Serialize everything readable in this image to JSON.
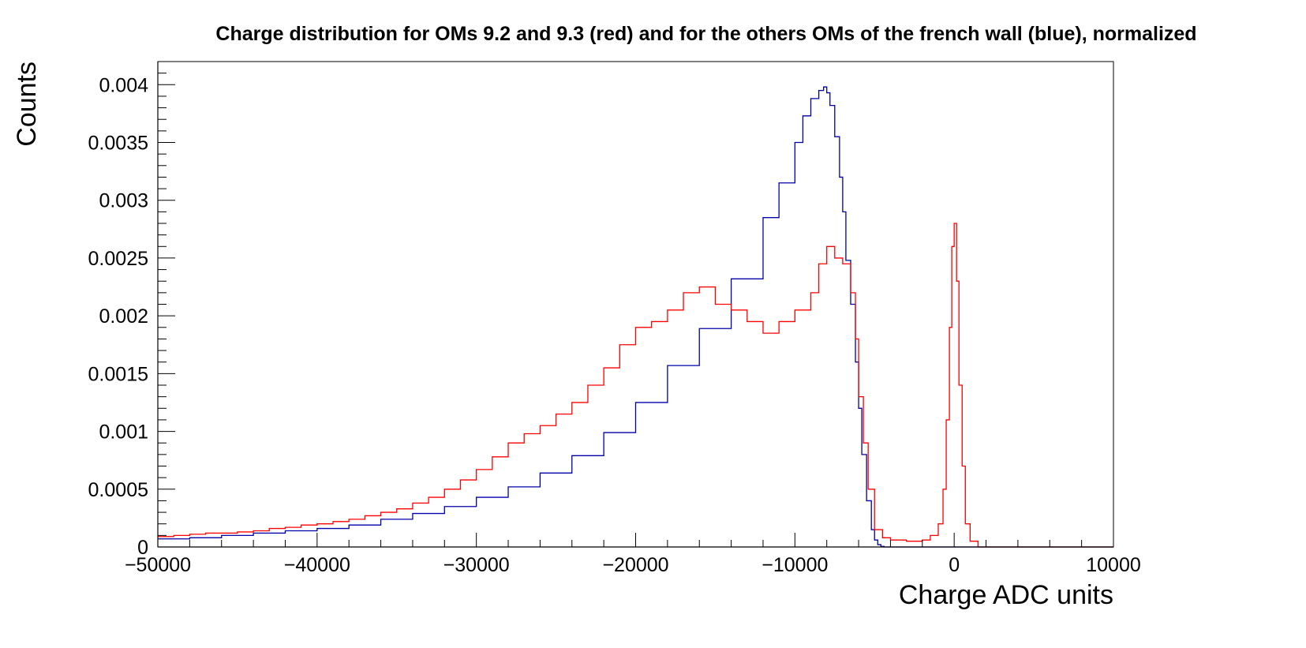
{
  "chart_data": {
    "type": "line",
    "title": "Charge distribution for OMs 9.2 and 9.3 (red)  and for the others OMs of the french wall (blue), normalized",
    "xlabel": "Charge ADC units",
    "ylabel": "Counts",
    "xlim": [
      -50000,
      10000
    ],
    "ylim": [
      0,
      0.0042
    ],
    "xticks": [
      -50000,
      -40000,
      -30000,
      -20000,
      -10000,
      0,
      10000
    ],
    "xtick_labels": [
      "−50000",
      "−40000",
      "−30000",
      "−20000",
      "−10000",
      "0",
      "10000"
    ],
    "yticks": [
      0,
      0.0005,
      0.001,
      0.0015,
      0.002,
      0.0025,
      0.003,
      0.0035,
      0.004
    ],
    "ytick_labels": [
      "0",
      "0.0005",
      "0.001",
      "0.0015",
      "0.002",
      "0.0025",
      "0.003",
      "0.0035",
      "0.004"
    ],
    "grid": false,
    "series": [
      {
        "color": "#0000a8",
        "style": "step",
        "x": [
          -50000,
          -48000,
          -46000,
          -44000,
          -42000,
          -40000,
          -38000,
          -36000,
          -34000,
          -32000,
          -30000,
          -28000,
          -26000,
          -24000,
          -22000,
          -20000,
          -18000,
          -16000,
          -14000,
          -12000,
          -11000,
          -10000,
          -9500,
          -9000,
          -8500,
          -8200,
          -8000,
          -7800,
          -7500,
          -7200,
          -7000,
          -6800,
          -6500,
          -6200,
          -6000,
          -5800,
          -5500,
          -5200,
          -5000,
          -4800,
          -4600,
          -4400,
          -4200,
          10000
        ],
        "y": [
          7e-05,
          8e-05,
          0.0001,
          0.00012,
          0.00014,
          0.00016,
          0.00019,
          0.00024,
          0.00029,
          0.00035,
          0.00043,
          0.00052,
          0.00064,
          0.00079,
          0.00099,
          0.00125,
          0.00157,
          0.00189,
          0.00232,
          0.00285,
          0.00315,
          0.0035,
          0.00373,
          0.00388,
          0.00395,
          0.00398,
          0.00393,
          0.00382,
          0.00355,
          0.0032,
          0.0029,
          0.00248,
          0.0021,
          0.0016,
          0.0012,
          0.0008,
          0.0004,
          0.00015,
          6e-05,
          2e-05,
          5e-06,
          0.0,
          0.0,
          0.0
        ]
      },
      {
        "color": "#ff0000",
        "style": "step",
        "x": [
          -50000,
          -49000,
          -48000,
          -47000,
          -46000,
          -45000,
          -44000,
          -43000,
          -42000,
          -41000,
          -40000,
          -39000,
          -38000,
          -37000,
          -36000,
          -35000,
          -34000,
          -33000,
          -32000,
          -31000,
          -30000,
          -29000,
          -28000,
          -27000,
          -26000,
          -25000,
          -24000,
          -23000,
          -22000,
          -21000,
          -20000,
          -19000,
          -18000,
          -17000,
          -16000,
          -15000,
          -14000,
          -13000,
          -12000,
          -11000,
          -10000,
          -9000,
          -8500,
          -8000,
          -7500,
          -7000,
          -6500,
          -6200,
          -6000,
          -5700,
          -5400,
          -5000,
          -4500,
          -4000,
          -3000,
          -2000,
          -1500,
          -1000,
          -700,
          -500,
          -300,
          -150,
          0,
          150,
          300,
          500,
          700,
          1000,
          1500,
          10000
        ],
        "y": [
          9e-05,
          0.0001,
          0.00011,
          0.00012,
          0.00012,
          0.00013,
          0.00014,
          0.00016,
          0.00017,
          0.00019,
          0.0002,
          0.00022,
          0.00024,
          0.00027,
          0.0003,
          0.00033,
          0.00038,
          0.00043,
          0.0005,
          0.00058,
          0.00067,
          0.00078,
          0.0009,
          0.00098,
          0.00105,
          0.00115,
          0.00125,
          0.0014,
          0.00155,
          0.00175,
          0.0019,
          0.00195,
          0.00205,
          0.0022,
          0.00225,
          0.0021,
          0.00205,
          0.00195,
          0.00185,
          0.00195,
          0.00205,
          0.0022,
          0.00245,
          0.0026,
          0.0025,
          0.00245,
          0.0022,
          0.0018,
          0.0013,
          0.0009,
          0.0005,
          0.00015,
          8e-05,
          6e-05,
          5e-05,
          6e-05,
          0.0001,
          0.0002,
          0.0005,
          0.0011,
          0.0019,
          0.0026,
          0.0028,
          0.0023,
          0.0014,
          0.0007,
          0.0002,
          5e-05,
          0.0,
          0.0
        ]
      }
    ]
  }
}
